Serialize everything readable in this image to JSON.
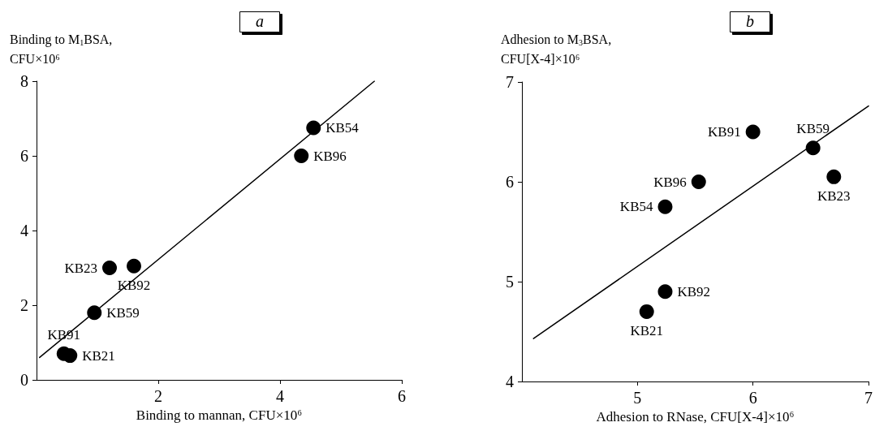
{
  "chart_data": [
    {
      "type": "scatter",
      "title": "a",
      "xlabel": "Binding to mannan, CFU×10⁶",
      "ylabel": "Binding to M$_{1}$BSA,\nCFU×10⁶",
      "xlim": [
        0,
        6
      ],
      "ylim": [
        0,
        8
      ],
      "xticks": [
        2,
        4,
        6
      ],
      "yticks": [
        0,
        2,
        4,
        6,
        8
      ],
      "marker": "circle",
      "series": [
        {
          "color": "#000000",
          "x": [
            4.55,
            4.35,
            1.2,
            1.6,
            0.95,
            0.45,
            0.55
          ],
          "values": [
            6.75,
            6.0,
            3.0,
            3.05,
            1.8,
            0.7,
            0.65
          ],
          "value_labels": [
            "KB54",
            "KB96",
            "KB23",
            "KB92",
            "KB59",
            "KB91",
            "KB21"
          ]
        },
        {
          "type": "line",
          "color": "#000000",
          "marker": "none",
          "x": [
            0.05,
            5.55
          ],
          "values": [
            0.6,
            8
          ]
        }
      ]
    },
    {
      "type": "scatter",
      "title": "b",
      "xlabel": "Adhesion to RNase, CFU[X-4]×10⁶",
      "ylabel": "Adhesion to M$_{3}$BSA,\nCFU[X-4]×10⁶",
      "xlim": [
        4,
        7
      ],
      "ylim": [
        4,
        7
      ],
      "xticks": [
        5,
        6,
        7
      ],
      "yticks": [
        4,
        5,
        6,
        7
      ],
      "marker": "circle",
      "series": [
        {
          "color": "#000000",
          "x": [
            6.0,
            6.52,
            6.7,
            5.53,
            5.24,
            5.24,
            5.08
          ],
          "values": [
            6.5,
            6.34,
            6.05,
            6.0,
            5.75,
            4.9,
            4.7
          ],
          "value_labels": [
            "KB91",
            "KB59",
            "KB23",
            "KB96",
            "KB54",
            "KB92",
            "KB21"
          ]
        },
        {
          "type": "line",
          "color": "#000000",
          "marker": "none",
          "x": [
            4.1,
            7
          ],
          "values": [
            4.43,
            6.76
          ]
        }
      ]
    }
  ]
}
